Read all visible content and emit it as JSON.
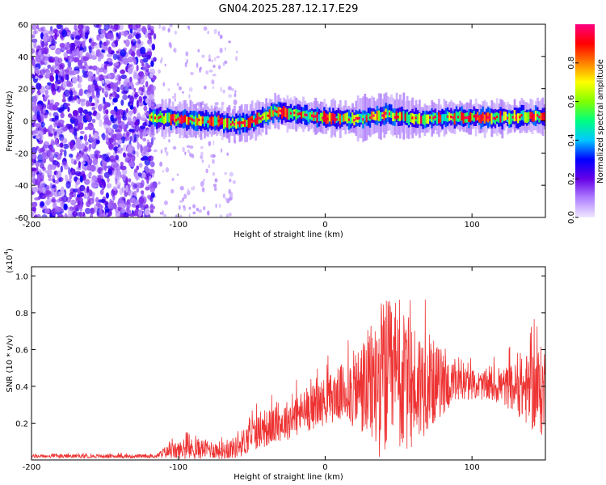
{
  "title": "GN04.2025.287.12.17.E29",
  "chart_data": [
    {
      "type": "heatmap",
      "name": "spectrogram",
      "xlabel": "Height of straight line (km)",
      "ylabel": "Frequency (Hz)",
      "xlim": [
        -200,
        150
      ],
      "ylim": [
        -60,
        60
      ],
      "xticks": [
        -200,
        -100,
        0,
        100
      ],
      "xtick_labels": [
        "-200",
        "-100",
        "0",
        "100"
      ],
      "yticks": [
        60,
        40,
        20,
        0,
        -20,
        -40,
        -60
      ],
      "ytick_labels": [
        "60",
        "40",
        "20",
        "0",
        "-20",
        "-40",
        "-60"
      ],
      "description_values": {
        "noise_region_x": [
          -200,
          -120
        ],
        "signal_band_center_hz": [
          [
            -120,
            2
          ],
          [
            -100,
            1
          ],
          [
            -80,
            0
          ],
          [
            -60,
            -2
          ],
          [
            -45,
            1
          ],
          [
            -35,
            6
          ],
          [
            -20,
            4
          ],
          [
            0,
            2
          ],
          [
            20,
            1
          ],
          [
            40,
            4
          ],
          [
            60,
            1
          ],
          [
            80,
            2
          ],
          [
            100,
            2
          ],
          [
            120,
            2
          ],
          [
            150,
            3
          ]
        ]
      },
      "colorbar": {
        "label": "Normalized spectral amplitude",
        "range": [
          0,
          1
        ],
        "ticks": [
          0.0,
          0.2,
          0.4,
          0.6,
          0.8
        ],
        "tick_labels": [
          "0.0",
          "0.2",
          "0.4",
          "0.6",
          "0.8"
        ],
        "colors": [
          "#f0e8ff",
          "#b080ff",
          "#6600e6",
          "#0000ff",
          "#00c8ff",
          "#00ff80",
          "#80ff00",
          "#ffff00",
          "#ff8000",
          "#ff0000",
          "#ff0080"
        ]
      }
    },
    {
      "type": "line",
      "name": "snr",
      "xlabel": "Height of straight line (km)",
      "ylabel": "SNR (10 * v/v)",
      "y_multiplier_label": "(x10",
      "y_multiplier_exp": "4",
      "xlim": [
        -200,
        150
      ],
      "ylim": [
        0,
        1.05
      ],
      "xticks": [
        -200,
        -100,
        0,
        100
      ],
      "xtick_labels": [
        "-200",
        "-100",
        "0",
        "100"
      ],
      "yticks": [
        0.2,
        0.4,
        0.6,
        0.8,
        1.0
      ],
      "ytick_labels": [
        "0.2",
        "0.4",
        "0.6",
        "0.8",
        "1.0"
      ],
      "color": "#ee3333",
      "envelope": {
        "x": [
          -200,
          -170,
          -140,
          -115,
          -110,
          -100,
          -90,
          -80,
          -70,
          -60,
          -55,
          -50,
          -40,
          -30,
          -20,
          -10,
          0,
          10,
          20,
          30,
          35,
          40,
          50,
          60,
          70,
          80,
          90,
          100,
          110,
          120,
          130,
          140,
          150
        ],
        "base": [
          0.02,
          0.02,
          0.02,
          0.02,
          0.04,
          0.05,
          0.06,
          0.06,
          0.05,
          0.07,
          0.1,
          0.14,
          0.17,
          0.2,
          0.24,
          0.28,
          0.32,
          0.36,
          0.38,
          0.4,
          0.42,
          0.45,
          0.42,
          0.4,
          0.42,
          0.42,
          0.4,
          0.41,
          0.4,
          0.4,
          0.39,
          0.38,
          0.37
        ],
        "amp": [
          0.01,
          0.01,
          0.01,
          0.01,
          0.03,
          0.05,
          0.06,
          0.05,
          0.05,
          0.06,
          0.08,
          0.09,
          0.1,
          0.1,
          0.12,
          0.12,
          0.13,
          0.15,
          0.22,
          0.32,
          0.4,
          0.45,
          0.4,
          0.36,
          0.26,
          0.18,
          0.1,
          0.08,
          0.08,
          0.1,
          0.14,
          0.22,
          0.26
        ]
      }
    }
  ]
}
